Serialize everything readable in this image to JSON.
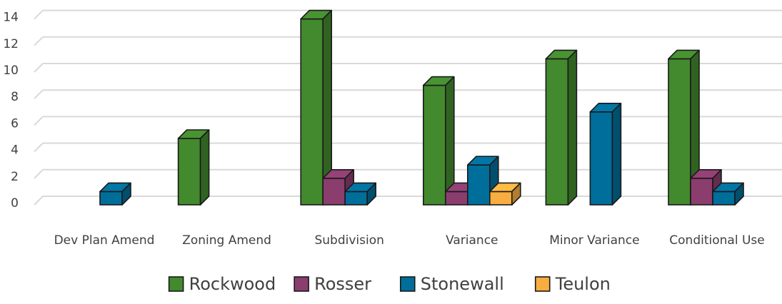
{
  "chart_data": {
    "type": "bar",
    "title": "",
    "xlabel": "",
    "ylabel": "",
    "categories": [
      "Dev Plan Amend",
      "Zoning Amend",
      "Subdivision",
      "Variance",
      "Minor Variance",
      "Conditional Use"
    ],
    "series": [
      {
        "name": "Rockwood",
        "color": "#43892e",
        "values": [
          0,
          5,
          14,
          9,
          11,
          11
        ]
      },
      {
        "name": "Rosser",
        "color": "#8b3d6e",
        "values": [
          0,
          0,
          2,
          1,
          0,
          2
        ]
      },
      {
        "name": "Stonewall",
        "color": "#006e9a",
        "values": [
          1,
          0,
          1,
          3,
          7,
          1
        ]
      },
      {
        "name": "Teulon",
        "color": "#f7ad3f",
        "values": [
          0,
          0,
          0,
          1,
          0,
          0
        ]
      }
    ],
    "ylim": [
      0,
      14
    ],
    "yticks": [
      0,
      2,
      4,
      6,
      8,
      10,
      12,
      14
    ],
    "grid": true,
    "legend_position": "bottom",
    "style": "3d-clustered-column"
  }
}
